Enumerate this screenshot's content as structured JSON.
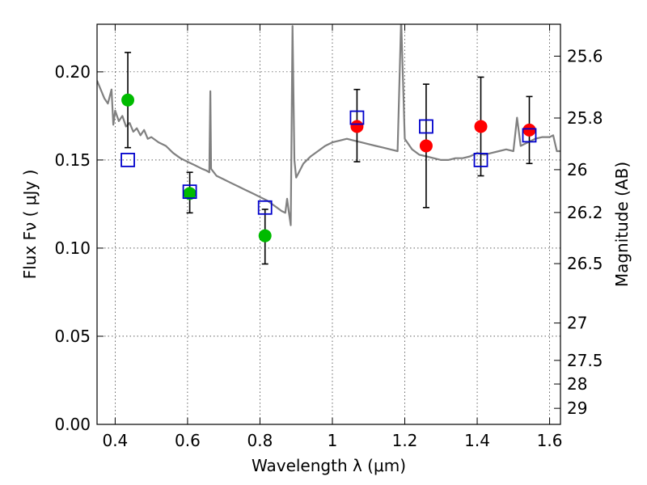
{
  "chart_data": {
    "type": "scatter",
    "xlabel": "Wavelength  λ (μm)",
    "ylabel": "Flux  Fν  ( μJy )",
    "y2label": "Magnitude (AB)",
    "xlim": [
      0.35,
      1.63
    ],
    "ylim": [
      0.0,
      0.227
    ],
    "grid": true,
    "x_ticks": [
      0.4,
      0.6,
      0.8,
      1.0,
      1.2,
      1.4,
      1.6
    ],
    "x_tick_labels": [
      "0.4",
      "0.6",
      "0.8",
      "1",
      "1.2",
      "1.4",
      "1.6"
    ],
    "y_ticks": [
      0.0,
      0.05,
      0.1,
      0.15,
      0.2
    ],
    "y_tick_labels": [
      "0.00",
      "0.05",
      "0.10",
      "0.15",
      "0.20"
    ],
    "y2_ticks": [
      {
        "label": "25.6",
        "flux": 0.2089
      },
      {
        "label": "25.8",
        "flux": 0.1738
      },
      {
        "label": "26",
        "flux": 0.1445
      },
      {
        "label": "26.2",
        "flux": 0.1202
      },
      {
        "label": "26.5",
        "flux": 0.0912
      },
      {
        "label": "27",
        "flux": 0.0575
      },
      {
        "label": "27.5",
        "flux": 0.0363
      },
      {
        "label": "28",
        "flux": 0.0229
      },
      {
        "label": "29",
        "flux": 0.0091
      }
    ],
    "series": [
      {
        "marker": "circle",
        "color": "#00bb00",
        "points": [
          {
            "x": 0.435,
            "y": 0.184,
            "err_lo": 0.027,
            "err_hi": 0.027
          },
          {
            "x": 0.606,
            "y": 0.131,
            "err_lo": 0.011,
            "err_hi": 0.012
          },
          {
            "x": 0.814,
            "y": 0.107,
            "err_lo": 0.016,
            "err_hi": 0.015
          }
        ]
      },
      {
        "marker": "circle",
        "color": "#ff0000",
        "points": [
          {
            "x": 1.068,
            "y": 0.169,
            "err_lo": 0.02,
            "err_hi": 0.021
          },
          {
            "x": 1.259,
            "y": 0.158,
            "err_lo": 0.035,
            "err_hi": 0.035
          },
          {
            "x": 1.41,
            "y": 0.169,
            "err_lo": 0.028,
            "err_hi": 0.028
          },
          {
            "x": 1.544,
            "y": 0.167,
            "err_lo": 0.019,
            "err_hi": 0.019
          }
        ]
      },
      {
        "marker": "square",
        "color": "#0000cc",
        "points": [
          {
            "x": 0.435,
            "y": 0.15
          },
          {
            "x": 0.606,
            "y": 0.132
          },
          {
            "x": 0.814,
            "y": 0.123
          },
          {
            "x": 1.068,
            "y": 0.174
          },
          {
            "x": 1.259,
            "y": 0.169
          },
          {
            "x": 1.41,
            "y": 0.15
          },
          {
            "x": 1.544,
            "y": 0.164
          }
        ]
      }
    ],
    "model_spectrum": {
      "color": "#808080",
      "x": [
        0.35,
        0.37,
        0.38,
        0.39,
        0.395,
        0.4,
        0.41,
        0.42,
        0.43,
        0.44,
        0.45,
        0.46,
        0.47,
        0.48,
        0.49,
        0.5,
        0.52,
        0.54,
        0.56,
        0.58,
        0.6,
        0.62,
        0.64,
        0.652,
        0.66,
        0.663,
        0.665,
        0.68,
        0.7,
        0.72,
        0.74,
        0.76,
        0.78,
        0.8,
        0.82,
        0.84,
        0.86,
        0.87,
        0.875,
        0.88,
        0.885,
        0.89,
        0.895,
        0.9,
        0.92,
        0.94,
        0.96,
        0.98,
        1.0,
        1.02,
        1.04,
        1.06,
        1.08,
        1.1,
        1.12,
        1.14,
        1.16,
        1.18,
        1.19,
        1.2,
        1.22,
        1.24,
        1.26,
        1.28,
        1.3,
        1.32,
        1.34,
        1.36,
        1.38,
        1.4,
        1.42,
        1.44,
        1.46,
        1.48,
        1.5,
        1.51,
        1.52,
        1.54,
        1.56,
        1.58,
        1.6,
        1.61,
        1.62,
        1.63
      ],
      "y": [
        0.195,
        0.185,
        0.182,
        0.19,
        0.17,
        0.178,
        0.172,
        0.175,
        0.169,
        0.171,
        0.166,
        0.168,
        0.164,
        0.167,
        0.162,
        0.163,
        0.16,
        0.158,
        0.154,
        0.151,
        0.149,
        0.147,
        0.145,
        0.144,
        0.143,
        0.189,
        0.145,
        0.141,
        0.139,
        0.137,
        0.135,
        0.133,
        0.131,
        0.129,
        0.127,
        0.124,
        0.121,
        0.12,
        0.128,
        0.12,
        0.113,
        0.226,
        0.15,
        0.14,
        0.148,
        0.152,
        0.155,
        0.158,
        0.16,
        0.161,
        0.162,
        0.161,
        0.16,
        0.159,
        0.158,
        0.157,
        0.156,
        0.155,
        0.23,
        0.162,
        0.156,
        0.153,
        0.152,
        0.151,
        0.15,
        0.15,
        0.151,
        0.151,
        0.152,
        0.154,
        0.153,
        0.154,
        0.155,
        0.156,
        0.155,
        0.174,
        0.158,
        0.16,
        0.162,
        0.163,
        0.163,
        0.164,
        0.155,
        0.155
      ]
    }
  }
}
